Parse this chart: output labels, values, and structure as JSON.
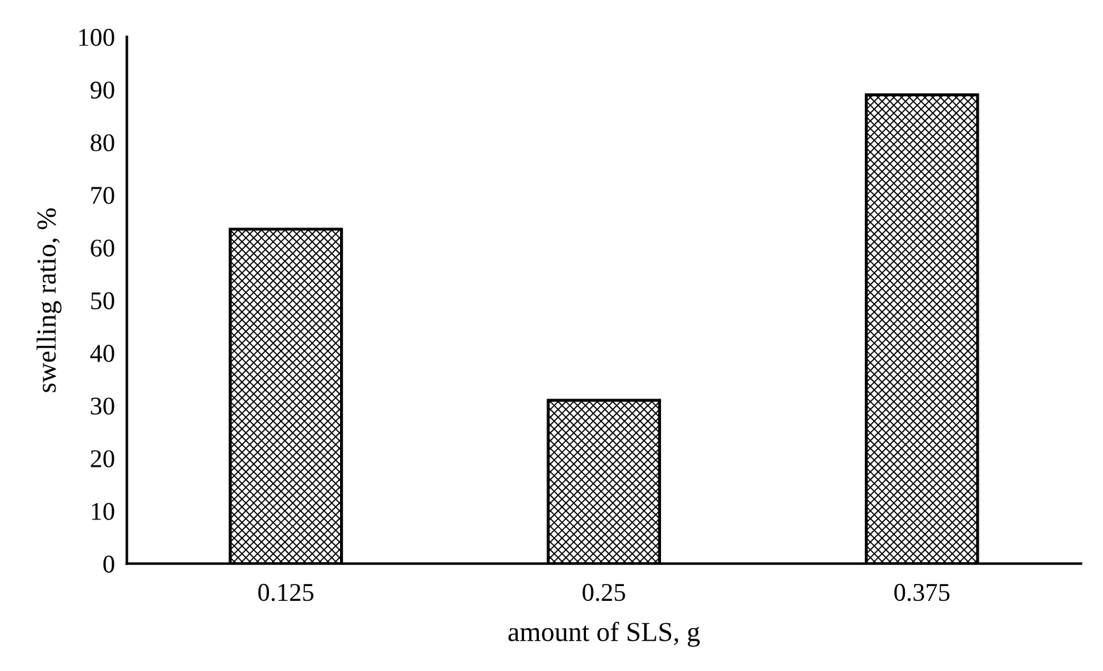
{
  "chart_data": {
    "type": "bar",
    "xlabel": "amount of SLS, g",
    "ylabel": "swelling ratio, %",
    "categories": [
      "0.125",
      "0.25",
      "0.375"
    ],
    "values": [
      63.5,
      31,
      89
    ],
    "color": "#000000",
    "ylim": [
      0,
      100
    ],
    "yticks": [
      0,
      10,
      20,
      30,
      40,
      50,
      60,
      70,
      80,
      90,
      100
    ],
    "grid": false
  }
}
